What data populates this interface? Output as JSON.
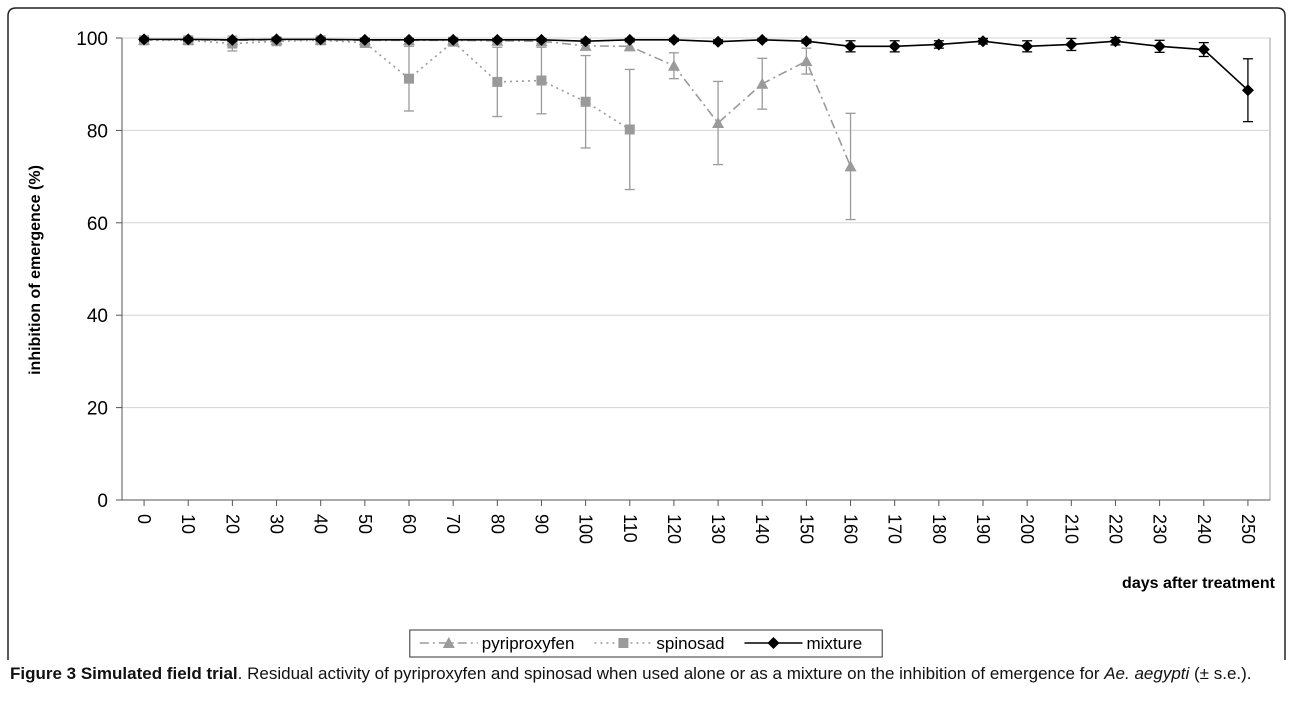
{
  "chart_data": {
    "type": "line",
    "y_label": "inhibition of emergence (%)",
    "x_label": "days after treatment",
    "x": [
      0,
      10,
      20,
      30,
      40,
      50,
      60,
      70,
      80,
      90,
      100,
      110,
      120,
      130,
      140,
      150,
      160,
      170,
      180,
      190,
      200,
      210,
      220,
      230,
      240,
      250
    ],
    "xlim": [
      -5,
      255
    ],
    "ylim": [
      0,
      100
    ],
    "yticks": [
      0,
      20,
      40,
      60,
      80,
      100
    ],
    "grid": true,
    "legend": "bottom",
    "series": [
      {
        "name": "pyriproxyfen",
        "color": "#9a9a9a",
        "dash": "9,4,2,4",
        "marker": "triangle",
        "values": [
          99.6,
          99.6,
          99.5,
          99.6,
          99.6,
          99.5,
          99.5,
          99.5,
          99.4,
          99.3,
          98.3,
          98.2,
          94,
          81.6,
          90.1,
          95,
          72.2,
          null,
          null,
          null,
          null,
          null,
          null,
          null,
          null,
          null
        ],
        "errors": [
          0.3,
          0.3,
          0.3,
          0.3,
          0.3,
          0.3,
          0.3,
          0.3,
          0.4,
          0.4,
          0.8,
          0.8,
          2.8,
          9,
          5.5,
          2.8,
          11.5,
          null,
          null,
          null,
          null,
          null,
          null,
          null,
          null,
          null
        ]
      },
      {
        "name": "spinosad",
        "color": "#9a9a9a",
        "dash": "2,4",
        "marker": "square",
        "values": [
          99.5,
          99.5,
          98.8,
          99.3,
          99.5,
          99,
          91.2,
          99.2,
          90.5,
          90.8,
          86.2,
          80.2,
          null,
          null,
          null,
          null,
          null,
          null,
          null,
          null,
          null,
          null,
          null,
          null,
          null,
          null
        ],
        "errors": [
          0.4,
          0.4,
          1.6,
          0.6,
          0.4,
          1,
          7,
          0.6,
          7.5,
          7.2,
          10,
          13,
          null,
          null,
          null,
          null,
          null,
          null,
          null,
          null,
          null,
          null,
          null,
          null,
          null,
          null
        ]
      },
      {
        "name": "mixture",
        "color": "#000000",
        "dash": "none",
        "marker": "diamond",
        "values": [
          99.7,
          99.7,
          99.6,
          99.7,
          99.7,
          99.6,
          99.6,
          99.6,
          99.6,
          99.6,
          99.3,
          99.6,
          99.6,
          99.2,
          99.6,
          99.3,
          98.2,
          98.2,
          98.6,
          99.3,
          98.2,
          98.6,
          99.3,
          98.2,
          97.5,
          88.7
        ],
        "errors": [
          0.3,
          0.3,
          0.3,
          0.3,
          0.3,
          0.3,
          0.3,
          0.3,
          0.3,
          0.3,
          0.4,
          0.3,
          0.3,
          0.4,
          0.3,
          0.4,
          1.2,
          1.2,
          0.8,
          0.6,
          1.2,
          1.3,
          0.8,
          1.3,
          1.5,
          6.8
        ]
      }
    ]
  },
  "caption": {
    "bold": "Figure 3 Simulated field trial",
    "text1": ". Residual activity of pyriproxyfen and spinosad when used alone or as a mixture on the inhibition of emergence for ",
    "italic": "Ae. aegypti",
    "text2": " (± s.e.)."
  }
}
